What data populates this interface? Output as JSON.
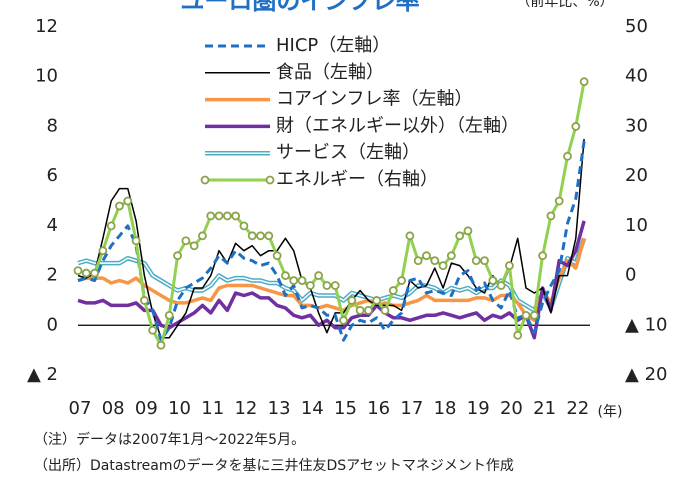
{
  "chart_data": {
    "type": "line",
    "title": "ユーロ圏のインフレ率",
    "y_unit": "（前年比、%）",
    "x_unit": "(年)",
    "notes": [
      "（注）データは2007年1月～2022年5月。",
      "（出所）Datastreamのデータを基に三井住友DSアセットマネジメント作成"
    ],
    "x": [
      2007,
      2007.25,
      2007.5,
      2007.75,
      2008,
      2008.25,
      2008.5,
      2008.75,
      2009,
      2009.25,
      2009.5,
      2009.75,
      2010,
      2010.25,
      2010.5,
      2010.75,
      2011,
      2011.25,
      2011.5,
      2011.75,
      2012,
      2012.25,
      2012.5,
      2012.75,
      2013,
      2013.25,
      2013.5,
      2013.75,
      2014,
      2014.25,
      2014.5,
      2014.75,
      2015,
      2015.25,
      2015.5,
      2015.75,
      2016,
      2016.25,
      2016.5,
      2016.75,
      2017,
      2017.25,
      2017.5,
      2017.75,
      2018,
      2018.25,
      2018.5,
      2018.75,
      2019,
      2019.25,
      2019.5,
      2019.75,
      2020,
      2020.25,
      2020.5,
      2020.75,
      2021,
      2021.25,
      2021.5,
      2021.75,
      2022,
      2022.25
    ],
    "xlim": [
      2007,
      2023
    ],
    "xticks": [
      {
        "value": 2007,
        "label": "07"
      },
      {
        "value": 2008,
        "label": "08"
      },
      {
        "value": 2009,
        "label": "09"
      },
      {
        "value": 2010,
        "label": "10"
      },
      {
        "value": 2011,
        "label": "11"
      },
      {
        "value": 2012,
        "label": "12"
      },
      {
        "value": 2013,
        "label": "13"
      },
      {
        "value": 2014,
        "label": "14"
      },
      {
        "value": 2015,
        "label": "15"
      },
      {
        "value": 2016,
        "label": "16"
      },
      {
        "value": 2017,
        "label": "17"
      },
      {
        "value": 2018,
        "label": "18"
      },
      {
        "value": 2019,
        "label": "19"
      },
      {
        "value": 2020,
        "label": "20"
      },
      {
        "value": 2021,
        "label": "21"
      },
      {
        "value": 2022,
        "label": "22"
      }
    ],
    "ylim": [
      -2,
      12
    ],
    "yticks": [
      {
        "value": -2,
        "label": "▲ 2"
      },
      0,
      2,
      4,
      6,
      8,
      10,
      12
    ],
    "y2lim": [
      -20,
      50
    ],
    "y2ticks": [
      {
        "value": -20,
        "label": "▲ 20"
      },
      {
        "value": -10,
        "label": "▲ 10"
      },
      0,
      10,
      20,
      30,
      40,
      50
    ],
    "series": [
      {
        "name": "HICP（左軸）",
        "color": "#1f6fc4",
        "style": "dashed",
        "values": [
          1.8,
          1.9,
          1.8,
          2.6,
          3.2,
          3.6,
          4.0,
          3.2,
          1.1,
          0.6,
          -0.6,
          -0.1,
          1.0,
          1.5,
          1.7,
          1.9,
          2.3,
          2.8,
          2.5,
          3.0,
          2.7,
          2.6,
          2.4,
          2.5,
          2.0,
          1.2,
          1.6,
          0.7,
          0.8,
          0.7,
          0.4,
          0.4,
          -0.6,
          0.0,
          0.2,
          0.1,
          0.3,
          -0.2,
          0.2,
          0.5,
          1.8,
          1.9,
          1.3,
          1.4,
          1.3,
          1.2,
          2.0,
          2.2,
          1.4,
          1.7,
          1.0,
          0.7,
          1.4,
          0.3,
          0.4,
          -0.3,
          0.9,
          1.6,
          2.2,
          4.1,
          5.1,
          7.4
        ]
      },
      {
        "name": "食品（左軸）",
        "color": "#000000",
        "style": "solid",
        "values": [
          2.0,
          1.9,
          2.1,
          3.5,
          5.0,
          5.5,
          5.5,
          4.2,
          2.0,
          0.5,
          -0.5,
          -0.5,
          0.0,
          0.5,
          1.5,
          1.5,
          2.0,
          3.0,
          2.5,
          3.3,
          3.0,
          3.2,
          2.8,
          3.0,
          3.0,
          3.5,
          3.0,
          1.8,
          1.5,
          0.5,
          -0.3,
          0.5,
          0.5,
          1.0,
          1.4,
          1.0,
          0.8,
          0.8,
          0.8,
          0.6,
          1.8,
          1.5,
          1.6,
          2.3,
          1.5,
          2.5,
          2.4,
          2.0,
          1.5,
          1.3,
          2.0,
          1.5,
          2.3,
          3.5,
          1.5,
          1.3,
          1.5,
          0.5,
          2.0,
          2.0,
          3.5,
          7.5
        ]
      },
      {
        "name": "コアインフレ率（左軸）",
        "color": "#f79646",
        "style": "thick",
        "values": [
          1.8,
          1.9,
          1.9,
          1.9,
          1.7,
          1.8,
          1.7,
          1.9,
          1.6,
          1.4,
          1.2,
          1.0,
          0.9,
          0.9,
          1.0,
          1.1,
          1.0,
          1.5,
          1.6,
          1.6,
          1.6,
          1.6,
          1.5,
          1.4,
          1.3,
          1.2,
          1.2,
          0.8,
          0.8,
          0.7,
          0.8,
          0.7,
          0.6,
          0.8,
          0.9,
          1.0,
          0.8,
          0.9,
          0.8,
          0.8,
          0.9,
          1.0,
          1.2,
          1.0,
          1.0,
          1.0,
          1.0,
          1.0,
          1.1,
          1.1,
          1.0,
          1.2,
          1.2,
          0.9,
          0.4,
          0.2,
          1.4,
          0.9,
          1.9,
          2.6,
          2.3,
          3.5
        ]
      },
      {
        "name": "財（エネルギー以外）（左軸）",
        "color": "#7030a0",
        "style": "thick",
        "values": [
          1.0,
          0.9,
          0.9,
          1.0,
          0.8,
          0.8,
          0.8,
          0.9,
          0.6,
          0.6,
          0.0,
          -0.1,
          0.1,
          0.3,
          0.5,
          0.8,
          0.5,
          1.0,
          0.6,
          1.3,
          1.2,
          1.3,
          1.1,
          1.1,
          0.8,
          0.7,
          0.4,
          0.3,
          0.4,
          0.0,
          0.2,
          -0.1,
          -0.1,
          0.3,
          0.4,
          0.4,
          0.8,
          0.5,
          0.3,
          0.3,
          0.2,
          0.3,
          0.4,
          0.4,
          0.5,
          0.4,
          0.3,
          0.4,
          0.5,
          0.2,
          0.4,
          0.3,
          0.5,
          0.2,
          0.4,
          -0.5,
          1.5,
          0.6,
          2.6,
          2.4,
          3.0,
          4.2
        ]
      },
      {
        "name": "サービス（左軸）",
        "color": "#4bacc6",
        "style": "double",
        "values": [
          2.5,
          2.6,
          2.5,
          2.5,
          2.5,
          2.5,
          2.7,
          2.6,
          2.5,
          2.0,
          1.8,
          1.6,
          1.4,
          1.5,
          1.4,
          1.4,
          1.6,
          2.0,
          1.8,
          1.9,
          1.9,
          1.8,
          1.8,
          1.7,
          1.7,
          1.5,
          1.4,
          1.0,
          1.3,
          1.2,
          1.2,
          1.2,
          1.0,
          1.3,
          1.2,
          1.1,
          1.0,
          1.1,
          1.2,
          1.1,
          1.3,
          1.6,
          1.6,
          1.5,
          1.3,
          1.5,
          1.4,
          1.5,
          1.3,
          1.5,
          1.5,
          1.8,
          1.6,
          1.0,
          0.8,
          0.6,
          1.3,
          0.7,
          1.7,
          2.7,
          2.5,
          3.5
        ]
      },
      {
        "name": "エネルギー（右軸）",
        "color": "#92d050",
        "style": "markers",
        "axis": "y2",
        "values": [
          1,
          0.5,
          0.5,
          5,
          10,
          14,
          15,
          7,
          -5,
          -11,
          -14,
          -8,
          4,
          7,
          6,
          8,
          12,
          12,
          12,
          12,
          10,
          8,
          8,
          8,
          4,
          0,
          -1,
          -1,
          -2,
          0,
          -2,
          -2,
          -9,
          -5,
          -7,
          -7,
          -5,
          -7,
          -3,
          -1,
          8,
          3,
          4,
          3,
          2,
          4,
          8,
          9,
          3,
          3,
          -1,
          -2,
          2,
          -12,
          -8,
          -8,
          4,
          12,
          15,
          24,
          30,
          39
        ]
      }
    ]
  }
}
